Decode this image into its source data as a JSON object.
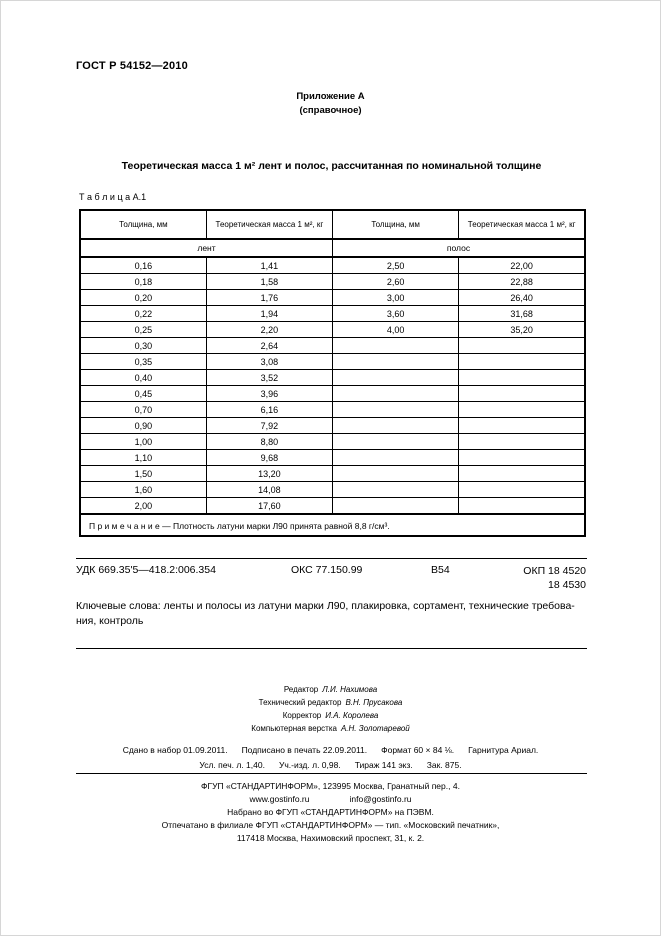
{
  "page": {
    "doc_number": "ГОСТ Р 54152—2010",
    "annex": {
      "line1": "Приложение А",
      "line2": "(справочное)"
    },
    "title": "Теоретическая масса 1 м² лент и полос, рассчитанная по номинальной толщине"
  },
  "table": {
    "label": "Т а б л и ц а  А.1",
    "headers": [
      "Толщина, мм",
      "Теоретическая масса 1 м², кг",
      "Толщина, мм",
      "Теоретическая масса 1 м², кг"
    ],
    "groups": [
      "лент",
      "полос"
    ],
    "rows": [
      [
        "0,16",
        "1,41",
        "2,50",
        "22,00"
      ],
      [
        "0,18",
        "1,58",
        "2,60",
        "22,88"
      ],
      [
        "0,20",
        "1,76",
        "3,00",
        "26,40"
      ],
      [
        "0,22",
        "1,94",
        "3,60",
        "31,68"
      ],
      [
        "0,25",
        "2,20",
        "4,00",
        "35,20"
      ],
      [
        "0,30",
        "2,64",
        "",
        ""
      ],
      [
        "0,35",
        "3,08",
        "",
        ""
      ],
      [
        "0,40",
        "3,52",
        "",
        ""
      ],
      [
        "0,45",
        "3,96",
        "",
        ""
      ],
      [
        "0,70",
        "6,16",
        "",
        ""
      ],
      [
        "0,90",
        "7,92",
        "",
        ""
      ],
      [
        "1,00",
        "8,80",
        "",
        ""
      ],
      [
        "1,10",
        "9,68",
        "",
        ""
      ],
      [
        "1,50",
        "13,20",
        "",
        ""
      ],
      [
        "1,60",
        "14,08",
        "",
        ""
      ],
      [
        "2,00",
        "17,60",
        "",
        ""
      ]
    ],
    "note": "П р и м е ч а н и е — Плотность латуни марки Л90 принята равной 8,8 г/см³."
  },
  "classification": {
    "udc": "УДК 669.35'5—418.2:006.354",
    "oks": "ОКС 77.150.99",
    "code": "В54",
    "okp_line1": "ОКП 18 4520",
    "okp_line2": "18 4530"
  },
  "keywords": {
    "line1": "Ключевые слова: ленты и полосы из латуни марки Л90, плакировка, сортамент, технические требова-",
    "line2": "ния, контроль"
  },
  "credits": [
    {
      "role": "Редактор",
      "name": "Л.И. Нахимова"
    },
    {
      "role": "Технический редактор",
      "name": "В.Н. Прусакова"
    },
    {
      "role": "Корректор",
      "name": "И.А. Королева"
    },
    {
      "role": "Компьютерная верстка",
      "name": "А.Н. Золотаревой"
    }
  ],
  "imprint": {
    "line1": [
      "Сдано в набор 01.09.2011.",
      "Подписано в печать 22.09.2011.",
      "Формат 60 × 84 ⅛.",
      "Гарнитура Ариал."
    ],
    "line2": [
      "Усл. печ. л. 1,40.",
      "Уч.-изд. л. 0,98.",
      "Тираж 141 экз.",
      "Зак. 875."
    ]
  },
  "publisher": {
    "line1": "ФГУП «СТАНДАРТИНФОРМ», 123995 Москва, Гранатный пер., 4.",
    "website": "www.gostinfo.ru",
    "email": "info@gostinfo.ru",
    "line3": "Набрано во ФГУП «СТАНДАРТИНФОРМ» на ПЭВМ.",
    "line4": "Отпечатано в филиале ФГУП «СТАНДАРТИНФОРМ» — тип. «Московский печатник»,",
    "line5": "117418 Москва, Нахимовский проспект, 31, к. 2."
  }
}
